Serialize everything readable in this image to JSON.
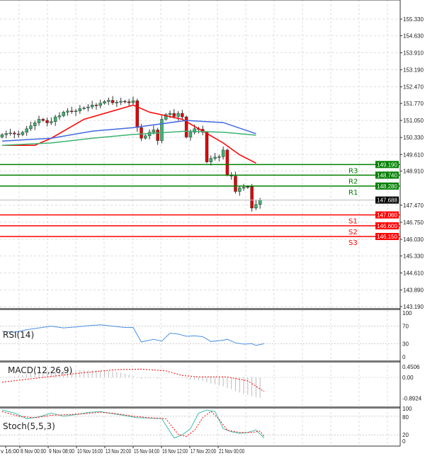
{
  "chart_data": [
    {
      "type": "candlestick",
      "price_axis": {
        "ticks": [
          "155.330",
          "154.630",
          "153.910",
          "153.190",
          "152.470",
          "151.770",
          "151.050",
          "150.330",
          "149.610",
          "148.910",
          "147.470",
          "146.750",
          "146.030",
          "145.330",
          "144.610",
          "143.890",
          "143.190"
        ],
        "ylim": [
          143.19,
          155.33
        ]
      },
      "closes": [
        150.45,
        150.5,
        150.52,
        150.48,
        150.45,
        150.55,
        150.7,
        150.82,
        150.95,
        151.1,
        151.05,
        150.95,
        151.0,
        151.2,
        151.25,
        151.4,
        151.45,
        151.42,
        151.45,
        151.55,
        151.58,
        151.62,
        151.7,
        151.68,
        151.78,
        151.85,
        151.9,
        151.8,
        151.82,
        151.86,
        151.84,
        151.8,
        151.88,
        150.75,
        150.3,
        150.4,
        150.55,
        150.65,
        150.2,
        151.1,
        151.3,
        151.35,
        151.22,
        151.35,
        151.2,
        150.35,
        150.55,
        150.7,
        150.68,
        150.55,
        149.3,
        149.45,
        149.5,
        149.52,
        149.8,
        148.75,
        148.7,
        148.05,
        148.2,
        148.22,
        148.25,
        147.35,
        147.5,
        147.688
      ],
      "first_open": 150.35,
      "moving_averages": [
        {
          "color": "#ff0000",
          "points": [
            [
              0,
              150.0
            ],
            [
              8,
              150.0
            ],
            [
              12,
              150.3
            ],
            [
              20,
              151.1
            ],
            [
              28,
              151.5
            ],
            [
              32,
              151.7
            ],
            [
              36,
              151.4
            ],
            [
              44,
              151.1
            ],
            [
              48,
              150.7
            ],
            [
              54,
              150.1
            ],
            [
              58,
              149.6
            ],
            [
              62,
              149.25
            ]
          ]
        },
        {
          "color": "#4169e1",
          "points": [
            [
              0,
              150.18
            ],
            [
              12,
              150.3
            ],
            [
              22,
              150.6
            ],
            [
              32,
              150.75
            ],
            [
              45,
              151.05
            ],
            [
              54,
              150.96
            ],
            [
              62,
              150.49
            ]
          ]
        },
        {
          "color": "#3cb371",
          "points": [
            [
              0,
              150.0
            ],
            [
              12,
              150.1
            ],
            [
              22,
              150.3
            ],
            [
              32,
              150.46
            ],
            [
              45,
              150.6
            ],
            [
              54,
              150.55
            ],
            [
              62,
              150.43
            ]
          ]
        }
      ],
      "levels": [
        {
          "label": "R3",
          "price": "149.190",
          "value": 149.19,
          "color": "#008000"
        },
        {
          "label": "R2",
          "price": "148.740",
          "value": 148.74,
          "color": "#008000"
        },
        {
          "label": "R1",
          "price": "148.280",
          "value": 148.28,
          "color": "#008000"
        },
        {
          "label": "S1",
          "price": "147.060",
          "value": 147.06,
          "color": "#ff0000"
        },
        {
          "label": "S2",
          "price": "146.600",
          "value": 146.6,
          "color": "#ff0000"
        },
        {
          "label": "S3",
          "price": "146.150",
          "value": 146.15,
          "color": "#ff0000"
        }
      ],
      "current_price": {
        "label": "147.688",
        "value": 147.688
      },
      "x_ticks": [
        "v 16:00",
        "8 Nov 00:00",
        "9 Nov 08:00",
        "10 Nov 16:00",
        "13 Nov 20:00",
        "15 Nov 04:00",
        "16 Nov 12:00",
        "17 Nov 20:00",
        "21 Nov 00:00"
      ],
      "bull_color": "#3cb371",
      "bear_color": "#e00000"
    },
    {
      "type": "line",
      "title": "RSI(14)",
      "ylim": [
        0,
        100
      ],
      "ticks": [
        "100",
        "70",
        "30",
        "0"
      ],
      "color": "#4a90e2",
      "points": [
        [
          0,
          58
        ],
        [
          3,
          56
        ],
        [
          6,
          62
        ],
        [
          9,
          66
        ],
        [
          12,
          70
        ],
        [
          15,
          66
        ],
        [
          18,
          68
        ],
        [
          21,
          71
        ],
        [
          24,
          73
        ],
        [
          27,
          70
        ],
        [
          30,
          67
        ],
        [
          32,
          67
        ],
        [
          34,
          34
        ],
        [
          37,
          40
        ],
        [
          39,
          36
        ],
        [
          41,
          54
        ],
        [
          43,
          52
        ],
        [
          45,
          47
        ],
        [
          47,
          48
        ],
        [
          49,
          46
        ],
        [
          51,
          35
        ],
        [
          54,
          38
        ],
        [
          55,
          40
        ],
        [
          57,
          32
        ],
        [
          59,
          29
        ],
        [
          61,
          30
        ],
        [
          62,
          26
        ],
        [
          64,
          30
        ]
      ]
    },
    {
      "type": "bar",
      "title": "MACD(12,26,9)",
      "ylim": [
        -0.8924,
        0.4506
      ],
      "ticks": [
        "0.4506",
        "0.00",
        "-0.8924"
      ],
      "histogram": [
        0,
        0,
        0.02,
        0.04,
        0.06,
        0.1,
        0.14,
        0.17,
        0.2,
        0.22,
        0.24,
        0.25,
        0.26,
        0.28,
        0.28,
        0.29,
        0.3,
        0.3,
        0.3,
        0.31,
        0.31,
        0.3,
        0.3,
        0.3,
        0.29,
        0.28,
        0.27,
        0.25,
        0.23,
        0.2,
        0.16,
        0.12,
        0.06,
        -0.02,
        -0.05,
        -0.04,
        -0.03,
        -0.02,
        -0.05,
        0,
        0.01,
        0,
        -0.01,
        -0.01,
        -0.02,
        -0.05,
        -0.08,
        -0.1,
        -0.12,
        -0.15,
        -0.2,
        -0.26,
        -0.3,
        -0.35,
        -0.38,
        -0.45,
        -0.5,
        -0.58,
        -0.64,
        -0.7,
        -0.74,
        -0.8,
        -0.84,
        -0.86
      ],
      "signal_color": "#ff0000",
      "signal": [
        [
          0,
          -0.2
        ],
        [
          10,
          0
        ],
        [
          20,
          0.2
        ],
        [
          28,
          0.33
        ],
        [
          34,
          0.35
        ],
        [
          40,
          0.28
        ],
        [
          44,
          0.08
        ],
        [
          48,
          0.02
        ],
        [
          55,
          0.02
        ],
        [
          60,
          -0.15
        ],
        [
          64,
          -0.6
        ]
      ]
    },
    {
      "type": "line",
      "title": "Stoch(5,5,3)",
      "ylim": [
        0,
        100
      ],
      "ticks": [
        "100",
        "80",
        "20",
        "0"
      ],
      "main_color": "#40c0b0",
      "signal_color": "#ff0000",
      "main": [
        [
          0,
          100
        ],
        [
          3,
          90
        ],
        [
          6,
          72
        ],
        [
          9,
          78
        ],
        [
          12,
          90
        ],
        [
          15,
          80
        ],
        [
          18,
          85
        ],
        [
          21,
          92
        ],
        [
          24,
          95
        ],
        [
          27,
          88
        ],
        [
          30,
          82
        ],
        [
          33,
          75
        ],
        [
          36,
          74
        ],
        [
          39,
          72
        ],
        [
          42,
          10
        ],
        [
          44,
          20
        ],
        [
          46,
          40
        ],
        [
          48,
          90
        ],
        [
          50,
          100
        ],
        [
          52,
          95
        ],
        [
          54,
          40
        ],
        [
          56,
          30
        ],
        [
          58,
          25
        ],
        [
          60,
          28
        ],
        [
          62,
          36
        ],
        [
          64,
          10
        ]
      ],
      "signal": [
        [
          0,
          95
        ],
        [
          4,
          80
        ],
        [
          8,
          75
        ],
        [
          12,
          83
        ],
        [
          16,
          85
        ],
        [
          20,
          88
        ],
        [
          24,
          93
        ],
        [
          28,
          88
        ],
        [
          32,
          80
        ],
        [
          36,
          75
        ],
        [
          40,
          72
        ],
        [
          43,
          22
        ],
        [
          45,
          15
        ],
        [
          47,
          35
        ],
        [
          49,
          75
        ],
        [
          51,
          96
        ],
        [
          53,
          70
        ],
        [
          55,
          35
        ],
        [
          58,
          28
        ],
        [
          61,
          28
        ],
        [
          63,
          32
        ],
        [
          64,
          15
        ]
      ]
    }
  ]
}
